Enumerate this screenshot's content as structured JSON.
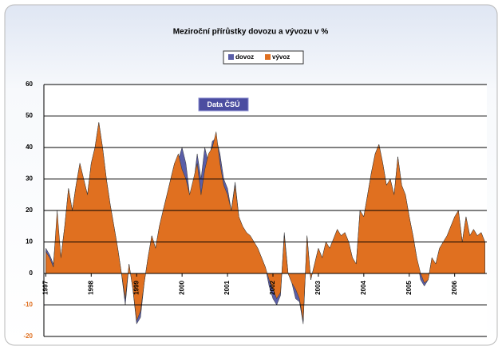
{
  "chart_data": {
    "type": "area",
    "title": "Meziroční přírůstky dovozu a vývozu v %",
    "annotation": "Data ČSÚ",
    "categories": [
      "1997",
      null,
      null,
      null,
      null,
      null,
      null,
      null,
      null,
      null,
      null,
      null,
      "1998",
      null,
      null,
      null,
      null,
      null,
      null,
      null,
      null,
      null,
      null,
      null,
      "1999",
      null,
      null,
      null,
      null,
      null,
      null,
      null,
      null,
      null,
      null,
      null,
      "2000",
      null,
      null,
      null,
      null,
      null,
      null,
      null,
      null,
      null,
      null,
      null,
      "2001",
      null,
      null,
      null,
      null,
      null,
      null,
      null,
      null,
      null,
      null,
      null,
      "2002",
      null,
      null,
      null,
      null,
      null,
      null,
      null,
      null,
      null,
      null,
      null,
      "2003",
      null,
      null,
      null,
      null,
      null,
      null,
      null,
      null,
      null,
      null,
      null,
      "2004",
      null,
      null,
      null,
      null,
      null,
      null,
      null,
      null,
      null,
      null,
      null,
      "2005",
      null,
      null,
      null,
      null,
      null,
      null,
      null,
      null,
      null,
      null,
      null,
      "2006",
      null,
      null,
      null,
      null,
      null,
      null,
      null,
      null
    ],
    "series": [
      {
        "name": "dovoz",
        "color": "#5a5ea8",
        "values": [
          8,
          6,
          3,
          18,
          5,
          15,
          27,
          20,
          28,
          35,
          30,
          25,
          35,
          40,
          48,
          40,
          30,
          22,
          15,
          8,
          0,
          -10,
          3,
          -5,
          -16,
          -14,
          -3,
          5,
          12,
          8,
          15,
          20,
          25,
          30,
          35,
          36,
          40,
          35,
          25,
          28,
          38,
          30,
          40,
          35,
          42,
          43,
          38,
          30,
          27,
          20,
          29,
          18,
          15,
          13,
          12,
          10,
          8,
          5,
          2,
          -4,
          -8,
          -10,
          -7,
          13,
          0,
          -3,
          -8,
          -9,
          -16,
          12,
          -2,
          3,
          8,
          5,
          10,
          8,
          11,
          14,
          12,
          13,
          10,
          5,
          3,
          20,
          18,
          25,
          32,
          38,
          41,
          35,
          28,
          30,
          25,
          37,
          28,
          25,
          18,
          12,
          5,
          -2,
          -4,
          -2,
          5,
          3,
          8,
          10,
          12,
          15,
          18,
          20,
          10,
          18,
          12,
          14,
          12,
          13,
          10
        ]
      },
      {
        "name": "vývoz",
        "color": "#e07020",
        "values": [
          7,
          5,
          2,
          20,
          5,
          15,
          27,
          20,
          28,
          35,
          30,
          25,
          35,
          40,
          48,
          40,
          30,
          22,
          15,
          8,
          0,
          -8,
          3,
          -5,
          -15,
          -12,
          -3,
          5,
          12,
          8,
          15,
          20,
          25,
          30,
          35,
          38,
          33,
          30,
          25,
          30,
          35,
          25,
          33,
          38,
          40,
          45,
          35,
          28,
          25,
          20,
          28,
          18,
          15,
          13,
          12,
          10,
          8,
          5,
          2,
          -2,
          -5,
          -8,
          -6,
          12,
          0,
          -3,
          -5,
          -8,
          -15,
          12,
          -2,
          3,
          8,
          5,
          10,
          8,
          11,
          14,
          12,
          13,
          10,
          5,
          3,
          20,
          18,
          25,
          32,
          38,
          41,
          35,
          28,
          30,
          25,
          37,
          28,
          25,
          18,
          12,
          5,
          0,
          -3,
          -2,
          5,
          3,
          8,
          10,
          12,
          15,
          18,
          20,
          10,
          18,
          12,
          14,
          12,
          13,
          10
        ]
      }
    ],
    "ylim": [
      -20,
      60
    ],
    "yticks": [
      -20,
      -10,
      0,
      10,
      20,
      30,
      40,
      50,
      60
    ],
    "grid": true,
    "tick_color": "#000000",
    "negative_tick_color": "#e07020",
    "legend": "top"
  }
}
